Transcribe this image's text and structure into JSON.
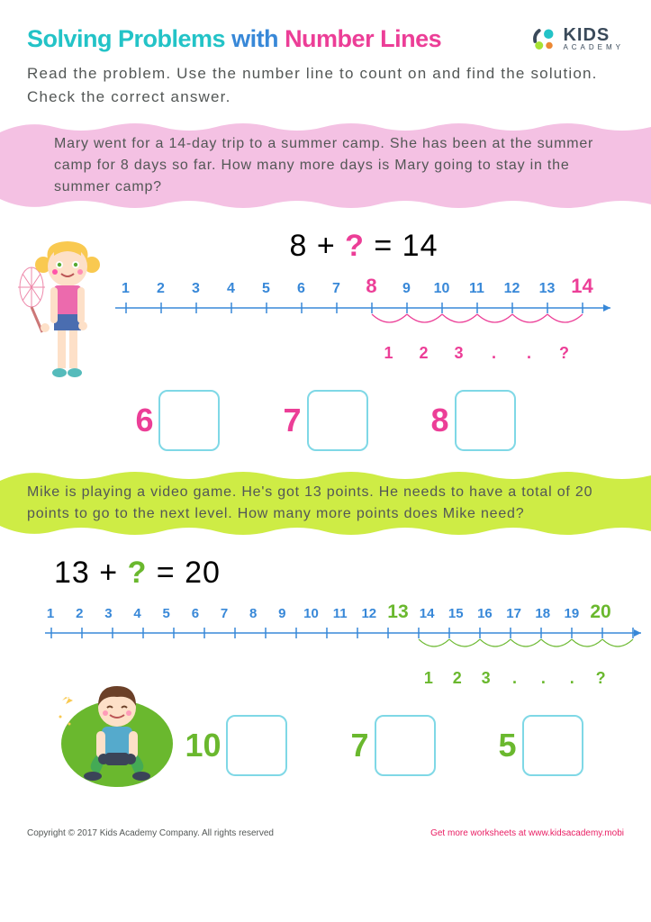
{
  "colors": {
    "cyan": "#23c3c7",
    "pink": "#ec3e97",
    "green": "#a7e233",
    "blue": "#3888d8",
    "boxBorder": "#7fd8e6",
    "bannerPink": "#f4c1e3",
    "bannerGreen": "#ceec45",
    "text": "#535756",
    "greenDark": "#6ab82e"
  },
  "title": {
    "part1": "Solving Problems",
    "joiner": " with ",
    "part2": "Number Lines"
  },
  "logo": {
    "kids": "KIDS",
    "academy": "ACADEMY"
  },
  "instructions": "Read the problem. Use the number line to count on and find the solution. Check the correct answer.",
  "problem1": {
    "text": "Mary went for a 14-day trip to a summer camp. She has been at the summer camp for 8 days so far. How many more days is Mary going to stay in the summer camp?",
    "eq_left": "8 + ",
    "eq_q": "?",
    "eq_right": " = 14",
    "numbers": [
      "1",
      "2",
      "3",
      "4",
      "5",
      "6",
      "7",
      "8",
      "9",
      "10",
      "11",
      "12",
      "13",
      "14"
    ],
    "highlightIdx": [
      7,
      13
    ],
    "arcLabels": [
      "1",
      "2",
      "3",
      ".",
      ".",
      "?"
    ],
    "options": [
      "6",
      "7",
      "8"
    ]
  },
  "problem2": {
    "text": "Mike is playing a video game. He's got 13 points. He needs to have a total of 20 points to go to the next level. How many more points does Mike need?",
    "eq_left": "13 + ",
    "eq_q": "?",
    "eq_right": " = 20",
    "numbers": [
      "1",
      "2",
      "3",
      "4",
      "5",
      "6",
      "7",
      "8",
      "9",
      "10",
      "11",
      "12",
      "13",
      "14",
      "15",
      "16",
      "17",
      "18",
      "19",
      "20"
    ],
    "highlightIdx": [
      12,
      19
    ],
    "arcLabels": [
      "1",
      "2",
      "3",
      ".",
      ".",
      ".",
      "?"
    ],
    "options": [
      "10",
      "7",
      "5"
    ]
  },
  "footer": {
    "copyright": "Copyright © 2017 Kids Academy Company. All rights reserved",
    "more": "Get more worksheets at www.kidsacademy.mobi"
  }
}
